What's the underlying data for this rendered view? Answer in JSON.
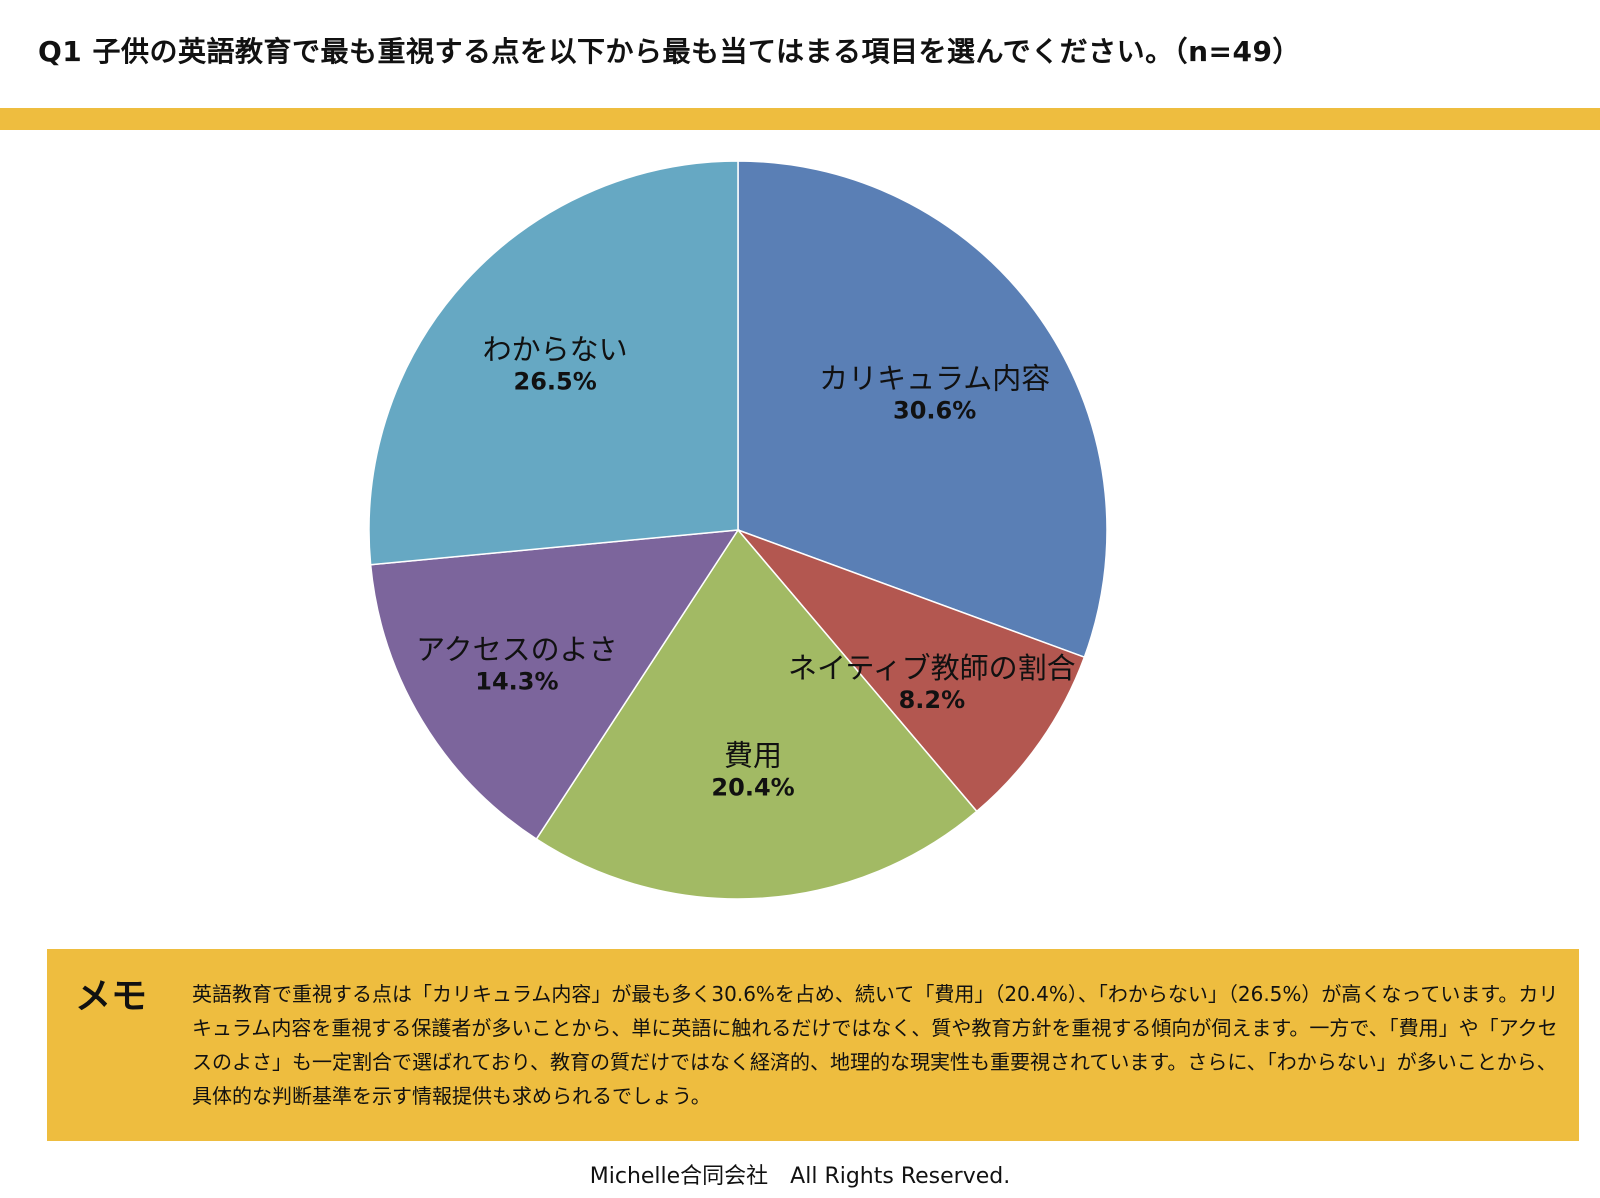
{
  "title": "Q1 子供の英語教育で最も重視する点を以下から最も当てはまる項目を選んでください。（n=49）",
  "colors": {
    "accent_bar": "#eebd3f",
    "memo_background": "#eebd3f"
  },
  "chart_data": {
    "type": "pie",
    "title": "Q1 子供の英語教育で最も重視する点を以下から最も当てはまる項目を選んでください。（n=49）",
    "start": "12 o'clock",
    "direction": "clockwise",
    "slices": [
      {
        "label": "カリキュラム内容",
        "value": 30.6,
        "display": "30.6%",
        "color": "#5a7fb5"
      },
      {
        "label": "ネイティブ教師の割合",
        "value": 8.2,
        "display": "8.2%",
        "color": "#b35750"
      },
      {
        "label": "費用",
        "value": 20.4,
        "display": "20.4%",
        "color": "#a2ba64"
      },
      {
        "label": "アクセスのよさ",
        "value": 14.3,
        "display": "14.3%",
        "color": "#7c659c"
      },
      {
        "label": "わからない",
        "value": 26.5,
        "display": "26.5%",
        "color": "#66a8c3"
      }
    ]
  },
  "memo": {
    "heading": "メモ",
    "text": "英語教育で重視する点は「カリキュラム内容」が最も多く30.6%を占め、続いて「費用」（20.4%）、「わからない」（26.5%）が高くなっています。カリキュラム内容を重視する保護者が多いことから、単に英語に触れるだけではなく、質や教育方針を重視する傾向が伺えます。一方で、「費用」や「アクセスのよさ」も一定割合で選ばれており、教育の質だけではなく経済的、地理的な現実性も重要視されています。さらに、「わからない」が多いことから、具体的な判断基準を示す情報提供も求められるでしょう。"
  },
  "footer": "Michelle合同会社　All Rights Reserved."
}
